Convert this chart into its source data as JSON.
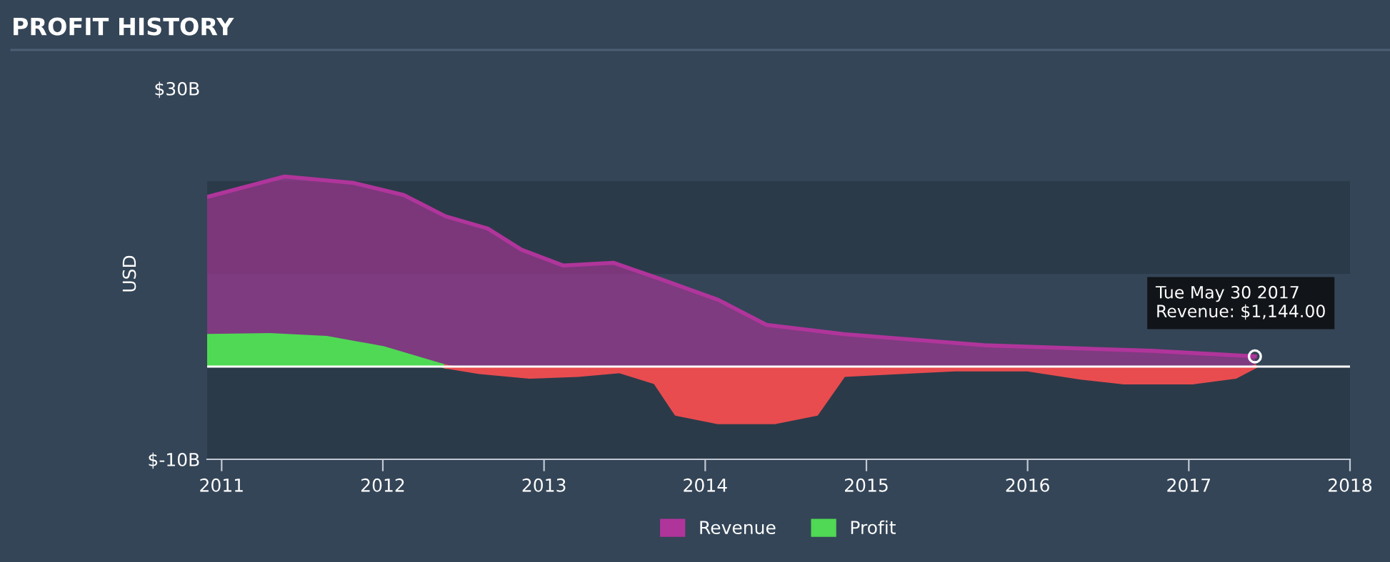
{
  "chart_data": {
    "type": "area",
    "title": "PROFIT HISTORY",
    "ylabel": "USD",
    "xlim": [
      2010.91,
      2018.0
    ],
    "xticks": [
      2011,
      2012,
      2013,
      2014,
      2015,
      2016,
      2017,
      2018
    ],
    "ylim": [
      -10,
      30
    ],
    "yticks": [
      {
        "value": 30,
        "label": "$30B"
      },
      {
        "value": -10,
        "label": "$-10B"
      }
    ],
    "grid": false,
    "legend": "bottom",
    "bands": [
      {
        "axis": "y",
        "from": 10,
        "to": 20,
        "color": "#2b3a49"
      },
      {
        "axis": "y",
        "from": -10,
        "to": 0,
        "color": "#2b3a49"
      }
    ],
    "ref_lines": [
      {
        "axis": "y",
        "value": 0,
        "color": "#ffffff"
      }
    ],
    "annotations": [
      {
        "text": "Tue May 30 2017\nRevenue: $1,144.00",
        "x": 2017.41,
        "y": 1.1
      }
    ],
    "series": [
      {
        "name": "Revenue",
        "color": "#b0359b",
        "x": [
          2010.91,
          2011.39,
          2011.82,
          2012.13,
          2012.39,
          2012.65,
          2012.86,
          2013.12,
          2013.43,
          2013.73,
          2014.08,
          2014.38,
          2014.86,
          2015.29,
          2015.73,
          2016.25,
          2016.77,
          2017.41
        ],
        "values": [
          18.3,
          20.5,
          19.8,
          18.5,
          16.2,
          14.9,
          12.6,
          10.9,
          11.2,
          9.4,
          7.2,
          4.5,
          3.5,
          2.9,
          2.3,
          2.0,
          1.7,
          1.1
        ]
      },
      {
        "name": "Profit",
        "color": "#4fd954",
        "x": [
          2010.91,
          2011.3,
          2011.65,
          2012.0,
          2012.39
        ],
        "values": [
          3.3,
          3.4,
          3.1,
          2.0,
          0
        ]
      },
      {
        "color": "#e84c4f",
        "x": [
          2012.39,
          2012.6,
          2012.91,
          2013.21,
          2013.47,
          2013.69,
          2013.82,
          2014.08,
          2014.43,
          2014.69,
          2014.86,
          2015.21,
          2015.55,
          2016.0,
          2016.33,
          2016.59,
          2017.03,
          2017.29,
          2017.41
        ],
        "values": [
          0,
          -0.6,
          -1.1,
          -0.9,
          -0.5,
          -1.7,
          -5.1,
          -6.0,
          -6.0,
          -5.1,
          -0.9,
          -0.6,
          -0.3,
          -0.3,
          -1.2,
          -1.7,
          -1.7,
          -1.1,
          0
        ]
      }
    ]
  }
}
